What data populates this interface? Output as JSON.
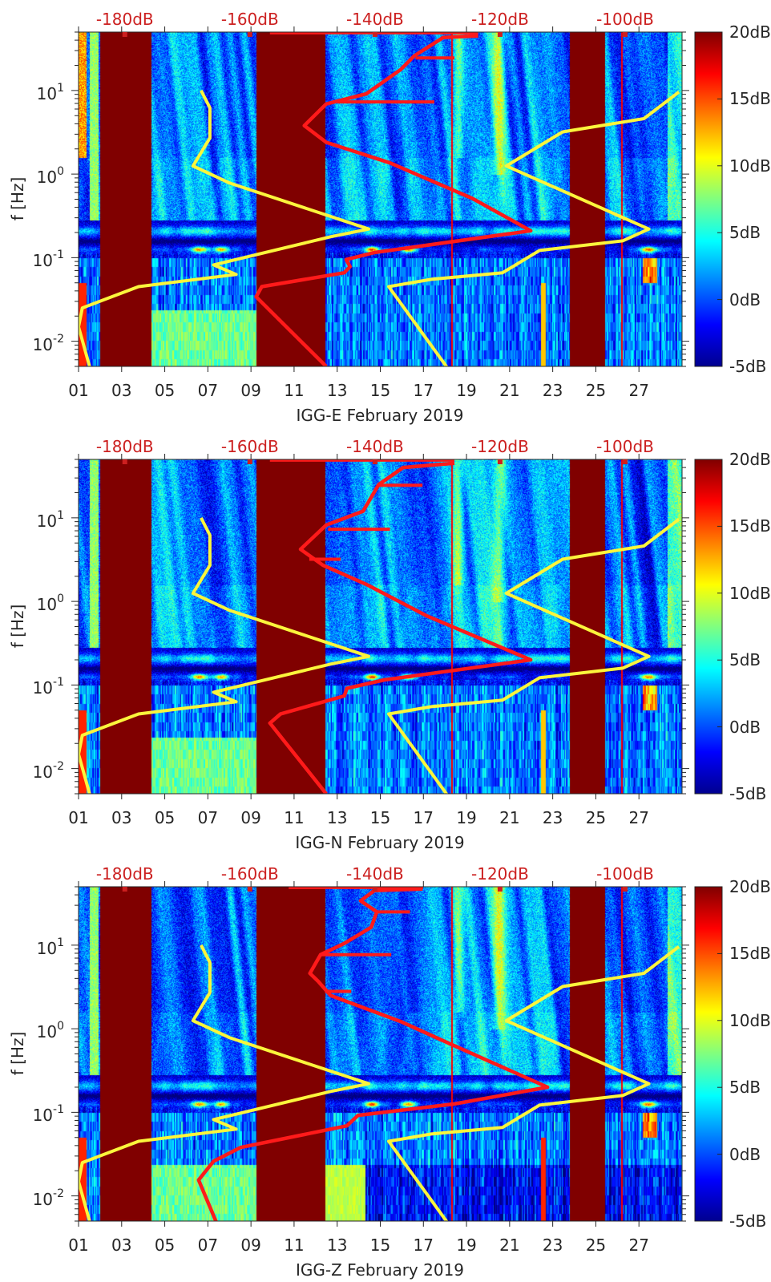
{
  "colors": {
    "station_psd": "#ff1a1a",
    "noise_models": "#fbf53c",
    "top_axis_labels": "#cc2020"
  },
  "chart_data": [
    {
      "type": "heatmap",
      "title": "",
      "xlabel": "IGG-E February 2019",
      "ylabel": "f [Hz]",
      "xlim_days": [
        1,
        29
      ],
      "x_tick_days": [
        1,
        3,
        5,
        7,
        9,
        11,
        13,
        15,
        17,
        19,
        21,
        23,
        25,
        27
      ],
      "x_ticks": [
        "01",
        "03",
        "05",
        "07",
        "09",
        "11",
        "13",
        "15",
        "17",
        "19",
        "21",
        "23",
        "25",
        "27"
      ],
      "yscale": "log",
      "ylim_hz": [
        0.005,
        50
      ],
      "y_tick_base": "10",
      "y_tick_exponents": [
        "1",
        "0",
        "-1",
        "-2"
      ],
      "colorbar": {
        "range_db": [
          -5,
          20
        ],
        "ticks": [
          "20dB",
          "15dB",
          "10dB",
          "5dB",
          "0dB",
          "-5dB"
        ],
        "colormap": "jet"
      },
      "top_axis": {
        "xlim_db": [
          -187.4,
          -90.9
        ],
        "values": [
          -180,
          -160,
          -140,
          -120,
          -100
        ],
        "ticks": [
          "-180dB",
          "-160dB",
          "-140dB",
          "-120dB",
          "-100dB"
        ]
      },
      "data_gaps_days": [
        [
          1.97,
          4.35
        ],
        [
          9.23,
          12.43
        ],
        [
          23.76,
          25.43
        ]
      ],
      "series": [
        {
          "name": "station PSD",
          "color": "#ff1a1a",
          "points_hz_db": [
            [
              0.005,
              -147.8
            ],
            [
              0.034,
              -159.0
            ],
            [
              0.045,
              -158.1
            ],
            [
              0.066,
              -144.9
            ],
            [
              0.078,
              -144.0
            ],
            [
              0.095,
              -144.6
            ],
            [
              0.115,
              -140.1
            ],
            [
              0.21,
              -115.1
            ],
            [
              0.51,
              -124.4
            ],
            [
              1.36,
              -137.6
            ],
            [
              2.4,
              -147.8
            ],
            [
              3.8,
              -151.3
            ],
            [
              6.9,
              -147.8
            ],
            [
              9.1,
              -141.4
            ],
            [
              17.8,
              -135.9
            ],
            [
              26,
              -133.7
            ],
            [
              43,
              -129.1
            ],
            [
              45,
              -123.5
            ]
          ],
          "spurs_hz_db": [
            [
              24.5,
              -133.5,
              -127.3
            ],
            [
              7.3,
              -146.0,
              -130.5
            ],
            [
              49,
              -156.8,
              -123.5
            ]
          ]
        },
        {
          "name": "low noise model",
          "color": "#fbf53c",
          "points_hz_db": [
            [
              10,
              -167.8
            ],
            [
              6.2,
              -166.4
            ],
            [
              2.7,
              -166.4
            ],
            [
              1.25,
              -169.1
            ],
            [
              0.78,
              -163.2
            ],
            [
              0.22,
              -141.0
            ],
            [
              0.178,
              -147.1
            ],
            [
              0.082,
              -165.8
            ],
            [
              0.063,
              -162.2
            ],
            [
              0.045,
              -177.8
            ],
            [
              0.025,
              -186.8
            ],
            [
              0.0149,
              -187.4
            ],
            [
              0.0049,
              -185.6
            ]
          ]
        },
        {
          "name": "high noise model",
          "color": "#fbf53c",
          "points_hz_db": [
            [
              9.6,
              -91.4
            ],
            [
              4.6,
              -97.0
            ],
            [
              3.2,
              -110.0
            ],
            [
              1.25,
              -119.0
            ],
            [
              0.22,
              -96.2
            ],
            [
              0.159,
              -100.4
            ],
            [
              0.122,
              -113.7
            ],
            [
              0.066,
              -119.6
            ],
            [
              0.055,
              -131.0
            ],
            [
              0.045,
              -137.8
            ],
            [
              0.0049,
              -128.5
            ]
          ]
        }
      ]
    },
    {
      "type": "heatmap",
      "title": "",
      "xlabel": "IGG-N February 2019",
      "ylabel": "f [Hz]",
      "xlim_days": [
        1,
        29
      ],
      "x_tick_days": [
        1,
        3,
        5,
        7,
        9,
        11,
        13,
        15,
        17,
        19,
        21,
        23,
        25,
        27
      ],
      "x_ticks": [
        "01",
        "03",
        "05",
        "07",
        "09",
        "11",
        "13",
        "15",
        "17",
        "19",
        "21",
        "23",
        "25",
        "27"
      ],
      "yscale": "log",
      "ylim_hz": [
        0.005,
        50
      ],
      "y_tick_base": "10",
      "y_tick_exponents": [
        "1",
        "0",
        "-1",
        "-2"
      ],
      "colorbar": {
        "range_db": [
          -5,
          20
        ],
        "ticks": [
          "20dB",
          "15dB",
          "10dB",
          "5dB",
          "0dB",
          "-5dB"
        ],
        "colormap": "jet"
      },
      "top_axis": {
        "xlim_db": [
          -187.4,
          -90.9
        ],
        "values": [
          -180,
          -160,
          -140,
          -120,
          -100
        ],
        "ticks": [
          "-180dB",
          "-160dB",
          "-140dB",
          "-120dB",
          "-100dB"
        ]
      },
      "data_gaps_days": [
        [
          1.97,
          4.35
        ],
        [
          9.23,
          12.43
        ],
        [
          23.76,
          25.43
        ]
      ],
      "series": [
        {
          "name": "station PSD",
          "color": "#ff1a1a",
          "points_hz_db": [
            [
              0.005,
              -147.8
            ],
            [
              0.035,
              -156.8
            ],
            [
              0.045,
              -155.1
            ],
            [
              0.074,
              -144.9
            ],
            [
              0.091,
              -144.5
            ],
            [
              0.115,
              -138.5
            ],
            [
              0.2,
              -115.1
            ],
            [
              0.67,
              -131.7
            ],
            [
              1.6,
              -141.4
            ],
            [
              2.7,
              -148.3
            ],
            [
              4.2,
              -151.9
            ],
            [
              8.2,
              -147.8
            ],
            [
              12,
              -141.9
            ],
            [
              25,
              -139.4
            ],
            [
              40,
              -135.5
            ],
            [
              45,
              -127.3
            ]
          ],
          "spurs_hz_db": [
            [
              24.5,
              -139.4,
              -132.4
            ],
            [
              7.3,
              -147.5,
              -137.6
            ],
            [
              3.2,
              -150.5,
              -145.5
            ],
            [
              49,
              -156.8,
              -127.3
            ]
          ]
        },
        {
          "name": "low noise model",
          "color": "#fbf53c",
          "points_hz_db": [
            [
              10,
              -167.8
            ],
            [
              6.2,
              -166.4
            ],
            [
              2.7,
              -166.4
            ],
            [
              1.25,
              -169.1
            ],
            [
              0.78,
              -163.2
            ],
            [
              0.22,
              -141.0
            ],
            [
              0.178,
              -147.1
            ],
            [
              0.082,
              -165.8
            ],
            [
              0.063,
              -162.2
            ],
            [
              0.045,
              -177.8
            ],
            [
              0.025,
              -186.8
            ],
            [
              0.0149,
              -187.4
            ],
            [
              0.0049,
              -185.6
            ]
          ]
        },
        {
          "name": "high noise model",
          "color": "#fbf53c",
          "points_hz_db": [
            [
              9.6,
              -91.4
            ],
            [
              4.6,
              -97.0
            ],
            [
              3.2,
              -110.0
            ],
            [
              1.25,
              -119.0
            ],
            [
              0.22,
              -96.2
            ],
            [
              0.159,
              -100.4
            ],
            [
              0.122,
              -113.7
            ],
            [
              0.066,
              -119.6
            ],
            [
              0.055,
              -131.0
            ],
            [
              0.045,
              -137.8
            ],
            [
              0.0049,
              -128.5
            ]
          ]
        }
      ]
    },
    {
      "type": "heatmap",
      "title": "",
      "xlabel": "IGG-Z February 2019",
      "ylabel": "f [Hz]",
      "xlim_days": [
        1,
        29
      ],
      "x_tick_days": [
        1,
        3,
        5,
        7,
        9,
        11,
        13,
        15,
        17,
        19,
        21,
        23,
        25,
        27
      ],
      "x_ticks": [
        "01",
        "03",
        "05",
        "07",
        "09",
        "11",
        "13",
        "15",
        "17",
        "19",
        "21",
        "23",
        "25",
        "27"
      ],
      "yscale": "log",
      "ylim_hz": [
        0.005,
        50
      ],
      "y_tick_base": "10",
      "y_tick_exponents": [
        "1",
        "0",
        "-1",
        "-2"
      ],
      "colorbar": {
        "range_db": [
          -5,
          20
        ],
        "ticks": [
          "20dB",
          "15dB",
          "10dB",
          "5dB",
          "0dB",
          "-5dB"
        ],
        "colormap": "jet"
      },
      "top_axis": {
        "xlim_db": [
          -187.4,
          -90.9
        ],
        "values": [
          -180,
          -160,
          -140,
          -120,
          -100
        ],
        "ticks": [
          "-180dB",
          "-160dB",
          "-140dB",
          "-120dB",
          "-100dB"
        ]
      },
      "data_gaps_days": [
        [
          1.97,
          4.35
        ],
        [
          9.23,
          12.43
        ],
        [
          23.76,
          25.43
        ]
      ],
      "series": [
        {
          "name": "station PSD",
          "color": "#ff1a1a",
          "points_hz_db": [
            [
              0.0049,
              -165.4
            ],
            [
              0.0155,
              -168.2
            ],
            [
              0.026,
              -165.8
            ],
            [
              0.038,
              -161.5
            ],
            [
              0.069,
              -144.5
            ],
            [
              0.092,
              -142.7
            ],
            [
              0.126,
              -127.3
            ],
            [
              0.2,
              -112.4
            ],
            [
              0.67,
              -128.2
            ],
            [
              1.22,
              -135.9
            ],
            [
              2.5,
              -147.1
            ],
            [
              3.7,
              -149.1
            ],
            [
              4.6,
              -150.4
            ],
            [
              7.7,
              -148.7
            ],
            [
              10.5,
              -144.9
            ],
            [
              16.4,
              -140.6
            ],
            [
              25,
              -139.7
            ],
            [
              34,
              -142.3
            ],
            [
              45,
              -140.1
            ],
            [
              47,
              -132.4
            ]
          ],
          "spurs_hz_db": [
            [
              25,
              -139.7,
              -134.4
            ],
            [
              7.7,
              -148.7,
              -137.4
            ],
            [
              2.8,
              -148.0,
              -143.8
            ],
            [
              49,
              -153.8,
              -132.3
            ]
          ]
        },
        {
          "name": "low noise model",
          "color": "#fbf53c",
          "points_hz_db": [
            [
              10,
              -167.8
            ],
            [
              6.2,
              -166.4
            ],
            [
              2.7,
              -166.4
            ],
            [
              1.25,
              -169.1
            ],
            [
              0.78,
              -163.2
            ],
            [
              0.22,
              -141.0
            ],
            [
              0.178,
              -147.1
            ],
            [
              0.082,
              -165.8
            ],
            [
              0.063,
              -162.2
            ],
            [
              0.045,
              -177.8
            ],
            [
              0.025,
              -186.8
            ],
            [
              0.0149,
              -187.4
            ],
            [
              0.0049,
              -185.6
            ]
          ]
        },
        {
          "name": "high noise model",
          "color": "#fbf53c",
          "points_hz_db": [
            [
              9.6,
              -91.4
            ],
            [
              4.6,
              -97.0
            ],
            [
              3.2,
              -110.0
            ],
            [
              1.25,
              -119.0
            ],
            [
              0.22,
              -96.2
            ],
            [
              0.159,
              -100.4
            ],
            [
              0.122,
              -113.7
            ],
            [
              0.066,
              -119.6
            ],
            [
              0.055,
              -131.0
            ],
            [
              0.045,
              -137.8
            ],
            [
              0.0049,
              -128.5
            ]
          ]
        }
      ]
    }
  ]
}
